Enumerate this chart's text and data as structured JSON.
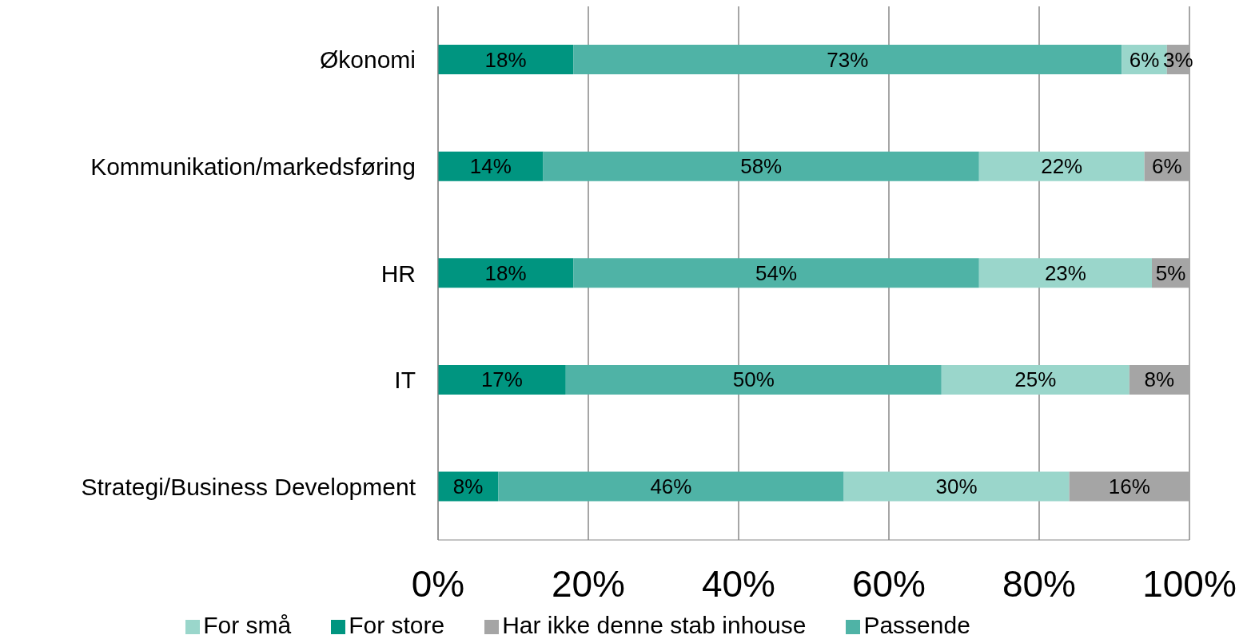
{
  "chart_data": {
    "type": "bar",
    "orientation": "horizontal",
    "stacked": true,
    "categories": [
      "Økonomi",
      "Kommunikation/markedsføring",
      "HR",
      "IT",
      "Strategi/Business Development"
    ],
    "series": [
      {
        "name": "For store",
        "color": "#009580",
        "values": [
          18,
          14,
          18,
          17,
          8
        ],
        "value_labels": [
          "18%",
          "14%",
          "18%",
          "17%",
          "8%"
        ]
      },
      {
        "name": "Passende",
        "color": "#4fb3a6",
        "values": [
          73,
          58,
          54,
          50,
          46
        ],
        "value_labels": [
          "73%",
          "58%",
          "54%",
          "50%",
          "46%"
        ]
      },
      {
        "name": "For små",
        "color": "#9ad6cb",
        "values": [
          6,
          22,
          23,
          25,
          30
        ],
        "value_labels": [
          "6%",
          "22%",
          "23%",
          "25%",
          "30%"
        ]
      },
      {
        "name": "Har ikke denne stab inhouse",
        "color": "#a5a5a5",
        "values": [
          3,
          6,
          5,
          8,
          16
        ],
        "value_labels": [
          "3%",
          "6%",
          "5%",
          "8%",
          "16%"
        ]
      }
    ],
    "xlim": [
      0,
      100
    ],
    "xticks": [
      {
        "value": 0,
        "label": "0%"
      },
      {
        "value": 20,
        "label": "20%"
      },
      {
        "value": 40,
        "label": "40%"
      },
      {
        "value": 60,
        "label": "60%"
      },
      {
        "value": 80,
        "label": "80%"
      },
      {
        "value": 100,
        "label": "100%"
      }
    ],
    "grid": "x",
    "legend": "bottom"
  }
}
